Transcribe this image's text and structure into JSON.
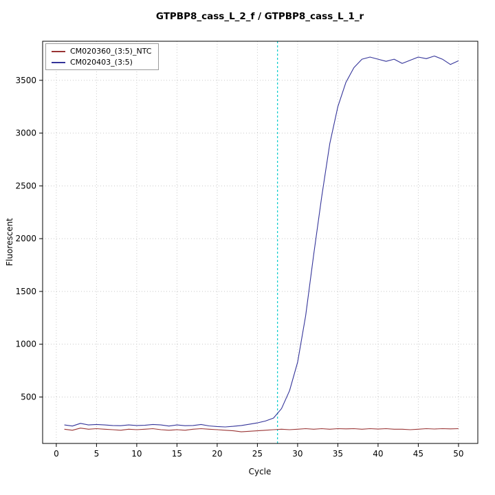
{
  "chart_data": {
    "type": "line",
    "title": "GTPBP8_cass_L_2_f / GTPBP8_cass_L_1_r",
    "xlabel": "Cycle",
    "ylabel": "Fluorescent",
    "xlim": [
      -1.7,
      52.4
    ],
    "ylim": [
      60,
      3870
    ],
    "x_ticks": [
      0,
      5,
      10,
      15,
      20,
      25,
      30,
      35,
      40,
      45,
      50
    ],
    "y_ticks": [
      500,
      1000,
      1500,
      2000,
      2500,
      3000,
      3500
    ],
    "grid": "dotted",
    "grid_color": "#C8C8C8",
    "legend_position": "top-left",
    "threshold_line": {
      "x": 27.5,
      "color": "#00CCCC",
      "style": "dashed"
    },
    "x": [
      1,
      2,
      3,
      4,
      5,
      6,
      7,
      8,
      9,
      10,
      11,
      12,
      13,
      14,
      15,
      16,
      17,
      18,
      19,
      20,
      21,
      22,
      23,
      24,
      25,
      26,
      27,
      28,
      29,
      30,
      31,
      32,
      33,
      34,
      35,
      36,
      37,
      38,
      39,
      40,
      41,
      42,
      43,
      44,
      45,
      46,
      47,
      48,
      49,
      50
    ],
    "series": [
      {
        "name": "CM020360_(3:5)_NTC",
        "color": "#993333",
        "values": [
          195,
          185,
          205,
          195,
          200,
          195,
          190,
          185,
          195,
          190,
          195,
          200,
          190,
          185,
          190,
          185,
          195,
          200,
          195,
          190,
          185,
          180,
          170,
          175,
          180,
          185,
          190,
          195,
          190,
          195,
          200,
          195,
          200,
          195,
          200,
          198,
          200,
          195,
          200,
          196,
          200,
          195,
          195,
          190,
          195,
          200,
          197,
          200,
          198,
          200
        ]
      },
      {
        "name": "CM020403_(3:5)",
        "color": "#333399",
        "values": [
          235,
          225,
          250,
          235,
          240,
          235,
          230,
          228,
          235,
          230,
          232,
          240,
          235,
          225,
          235,
          228,
          230,
          240,
          226,
          220,
          216,
          222,
          230,
          242,
          255,
          272,
          300,
          390,
          560,
          830,
          1270,
          1850,
          2400,
          2900,
          3250,
          3480,
          3620,
          3700,
          3720,
          3700,
          3680,
          3700,
          3660,
          3690,
          3720,
          3705,
          3730,
          3700,
          3650,
          3685
        ]
      }
    ]
  }
}
